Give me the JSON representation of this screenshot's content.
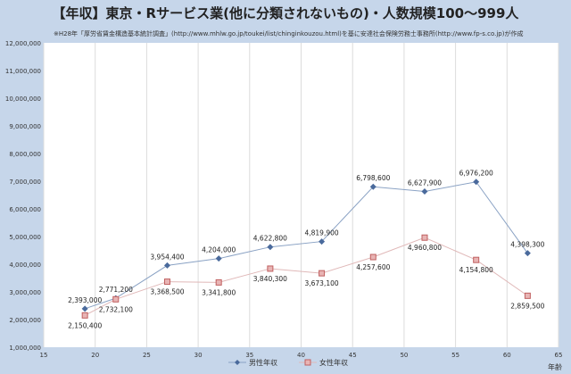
{
  "chart_data": {
    "type": "line",
    "title": "【年収】東京・Rサービス業(他に分類されないもの)・人数規模100～999人",
    "subtitle": "※H28年「厚労省賃金構造基本統計調査」(http://www.mhlw.go.jp/toukei/list/chinginkouzou.html)を基に安達社会保険労務士事務所(http://www.fp-s.co.jp)が作成",
    "xlabel": "年齢",
    "ylabel": "",
    "xlim": [
      15,
      65
    ],
    "ylim": [
      1000000,
      12000000
    ],
    "xticks": [
      15,
      20,
      25,
      30,
      35,
      40,
      45,
      50,
      55,
      60,
      65
    ],
    "yticks": [
      1000000,
      2000000,
      3000000,
      4000000,
      5000000,
      6000000,
      7000000,
      8000000,
      9000000,
      10000000,
      11000000,
      12000000
    ],
    "ytick_labels": [
      "1,000,000",
      "2,000,000",
      "3,000,000",
      "4,000,000",
      "5,000,000",
      "6,000,000",
      "7,000,000",
      "8,000,000",
      "9,000,000",
      "10,000,000",
      "11,000,000",
      "12,000,000"
    ],
    "grid": "vertical",
    "legend": "bottom",
    "x": [
      19,
      22,
      27,
      32,
      37,
      42,
      47,
      52,
      57,
      62
    ],
    "series": [
      {
        "name": "男性年収",
        "color": "#4a6a9c",
        "marker": "diamond",
        "values": [
          2393000,
          2771200,
          3954400,
          4204000,
          4622800,
          4819900,
          6798600,
          6627900,
          6976200,
          4398300
        ],
        "labels": [
          "2,393,000",
          "2,771,200",
          "3,954,400",
          "4,204,000",
          "4,622,800",
          "4,819,900",
          "6,798,600",
          "6,627,900",
          "6,976,200",
          "4,398,300"
        ]
      },
      {
        "name": "女性年収",
        "color": "#d8a0a0",
        "marker": "square",
        "values": [
          2150400,
          2732100,
          3368500,
          3341800,
          3840300,
          3673100,
          4257600,
          4960800,
          4154800,
          2859500
        ],
        "labels": [
          "2,150,400",
          "2,732,100",
          "3,368,500",
          "3,341,800",
          "3,840,300",
          "3,673,100",
          "4,257,600",
          "4,960,800",
          "4,154,800",
          "2,859,500"
        ]
      }
    ]
  }
}
